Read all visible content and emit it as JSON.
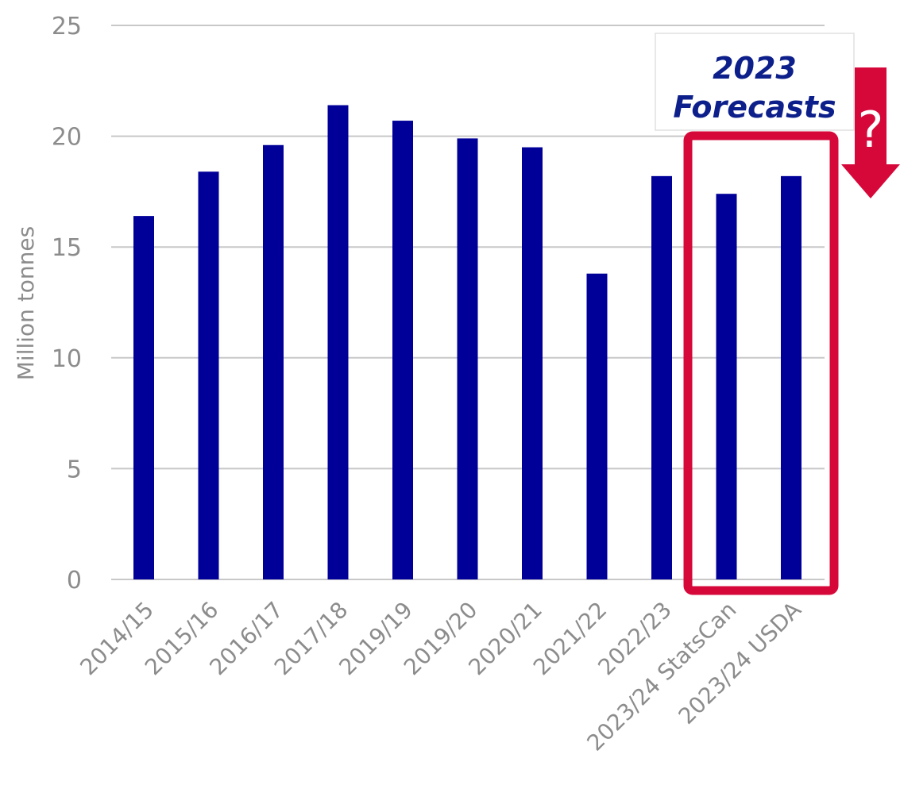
{
  "chart_data": {
    "type": "bar",
    "categories": [
      "2014/15",
      "2015/16",
      "2016/17",
      "2017/18",
      "2019/19",
      "2019/20",
      "2020/21",
      "2021/22",
      "2022/23",
      "2023/24 StatsCan",
      "2023/24 USDA"
    ],
    "values": [
      16.4,
      18.4,
      19.6,
      21.4,
      20.7,
      19.9,
      19.5,
      13.8,
      18.2,
      17.4,
      18.2
    ],
    "title": "",
    "xlabel": "",
    "ylabel": "Million tonnes",
    "ylim": [
      0,
      25
    ],
    "yticks": [
      0,
      5,
      10,
      15,
      20,
      25
    ],
    "grid": true,
    "bar_color": "#000099",
    "highlight": {
      "categories": [
        "2023/24 StatsCan",
        "2023/24 USDA"
      ],
      "label_line1": "2023",
      "label_line2": "Forecasts",
      "box_color": "#d6083a",
      "arrow_color": "#d6083a",
      "arrow_symbol": "?",
      "text_color": "#0d1f8a"
    }
  }
}
